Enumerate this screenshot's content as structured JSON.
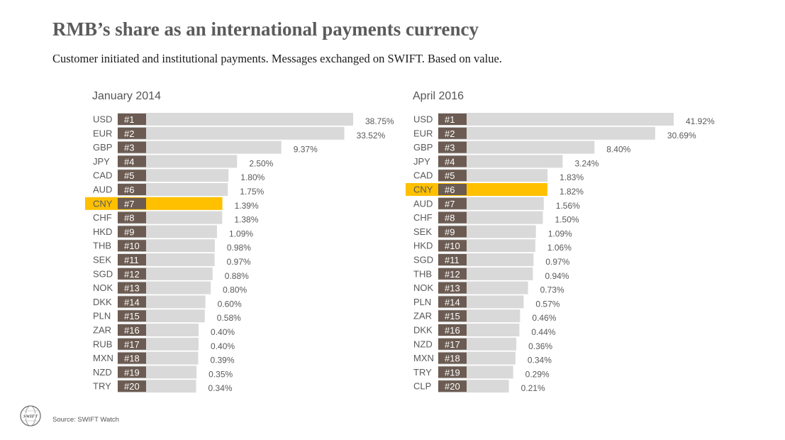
{
  "title": "RMB’s share as an international payments currency",
  "subtitle": "Customer initiated  and institutional  payments. Messages exchanged  on SWIFT. Based on value.",
  "source": "Source: SWIFT Watch",
  "logo_text": "SWIFT",
  "colors": {
    "bar": "#d9d9d9",
    "highlight": "#ffc000",
    "rank_box": "#6b5b52",
    "label": "#595959"
  },
  "chart_data": [
    {
      "type": "bar",
      "orientation": "horizontal",
      "title": "January 2014",
      "highlight": "CNY",
      "ranks": [
        "#1",
        "#2",
        "#3",
        "#4",
        "#5",
        "#6",
        "#7",
        "#8",
        "#9",
        "#10",
        "#11",
        "#12",
        "#13",
        "#14",
        "#15",
        "#16",
        "#17",
        "#18",
        "#19",
        "#20"
      ],
      "categories": [
        "USD",
        "EUR",
        "GBP",
        "JPY",
        "CAD",
        "AUD",
        "CNY",
        "CHF",
        "HKD",
        "THB",
        "SEK",
        "SGD",
        "NOK",
        "DKK",
        "PLN",
        "ZAR",
        "RUB",
        "MXN",
        "NZD",
        "TRY"
      ],
      "values": [
        38.75,
        33.52,
        9.37,
        2.5,
        1.8,
        1.75,
        1.39,
        1.38,
        1.09,
        0.98,
        0.97,
        0.88,
        0.8,
        0.6,
        0.58,
        0.4,
        0.4,
        0.39,
        0.35,
        0.34
      ],
      "value_labels": [
        "38.75%",
        "33.52%",
        "9.37%",
        "2.50%",
        "1.80%",
        "1.75%",
        "1.39%",
        "1.38%",
        "1.09%",
        "0.98%",
        "0.97%",
        "0.88%",
        "0.80%",
        "0.60%",
        "0.58%",
        "0.40%",
        "0.40%",
        "0.39%",
        "0.35%",
        "0.34%"
      ]
    },
    {
      "type": "bar",
      "orientation": "horizontal",
      "title": "April 2016",
      "highlight": "CNY",
      "ranks": [
        "#1",
        "#2",
        "#3",
        "#4",
        "#5",
        "#6",
        "#7",
        "#8",
        "#9",
        "#10",
        "#11",
        "#12",
        "#13",
        "#14",
        "#15",
        "#16",
        "#17",
        "#18",
        "#19",
        "#20"
      ],
      "categories": [
        "USD",
        "EUR",
        "GBP",
        "JPY",
        "CAD",
        "CNY",
        "AUD",
        "CHF",
        "SEK",
        "HKD",
        "SGD",
        "THB",
        "NOK",
        "PLN",
        "ZAR",
        "DKK",
        "NZD",
        "MXN",
        "TRY",
        "CLP"
      ],
      "values": [
        41.92,
        30.69,
        8.4,
        3.24,
        1.83,
        1.82,
        1.56,
        1.5,
        1.09,
        1.06,
        0.97,
        0.94,
        0.73,
        0.57,
        0.46,
        0.44,
        0.36,
        0.34,
        0.29,
        0.21
      ],
      "value_labels": [
        "41.92%",
        "30.69%",
        "8.40%",
        "3.24%",
        "1.83%",
        "1.82%",
        "1.56%",
        "1.50%",
        "1.09%",
        "1.06%",
        "0.97%",
        "0.94%",
        "0.73%",
        "0.57%",
        "0.46%",
        "0.44%",
        "0.36%",
        "0.34%",
        "0.29%",
        "0.21%"
      ]
    }
  ]
}
